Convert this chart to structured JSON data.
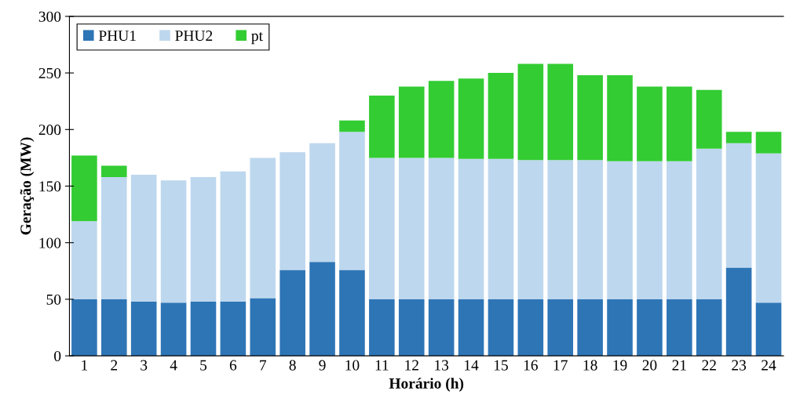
{
  "chart_data": {
    "type": "bar",
    "stacked": true,
    "xlabel": "Horário (h)",
    "ylabel": "Geração (MW)",
    "categories": [
      "1",
      "2",
      "3",
      "4",
      "5",
      "6",
      "7",
      "8",
      "9",
      "10",
      "11",
      "12",
      "13",
      "14",
      "15",
      "16",
      "17",
      "18",
      "19",
      "20",
      "21",
      "22",
      "23",
      "24"
    ],
    "series": [
      {
        "name": "PHU1",
        "color": "#2e75b6",
        "values": [
          50,
          50,
          48,
          47,
          48,
          48,
          51,
          76,
          83,
          76,
          50,
          50,
          50,
          50,
          50,
          50,
          50,
          50,
          50,
          50,
          50,
          50,
          78,
          47
        ]
      },
      {
        "name": "PHU2",
        "color": "#bdd7ee",
        "values": [
          69,
          108,
          112,
          108,
          110,
          115,
          124,
          104,
          105,
          122,
          125,
          125,
          125,
          124,
          124,
          123,
          123,
          123,
          122,
          122,
          122,
          133,
          110,
          132
        ]
      },
      {
        "name": "pt",
        "color": "#33cc33",
        "values": [
          58,
          10,
          null,
          null,
          null,
          null,
          null,
          null,
          null,
          10,
          55,
          63,
          68,
          71,
          76,
          85,
          85,
          75,
          76,
          66,
          66,
          52,
          10,
          19
        ]
      }
    ],
    "ylim": [
      0,
      300
    ],
    "yticks": [
      0,
      50,
      100,
      150,
      200,
      250,
      300
    ],
    "grid": false,
    "legend": "top left"
  }
}
